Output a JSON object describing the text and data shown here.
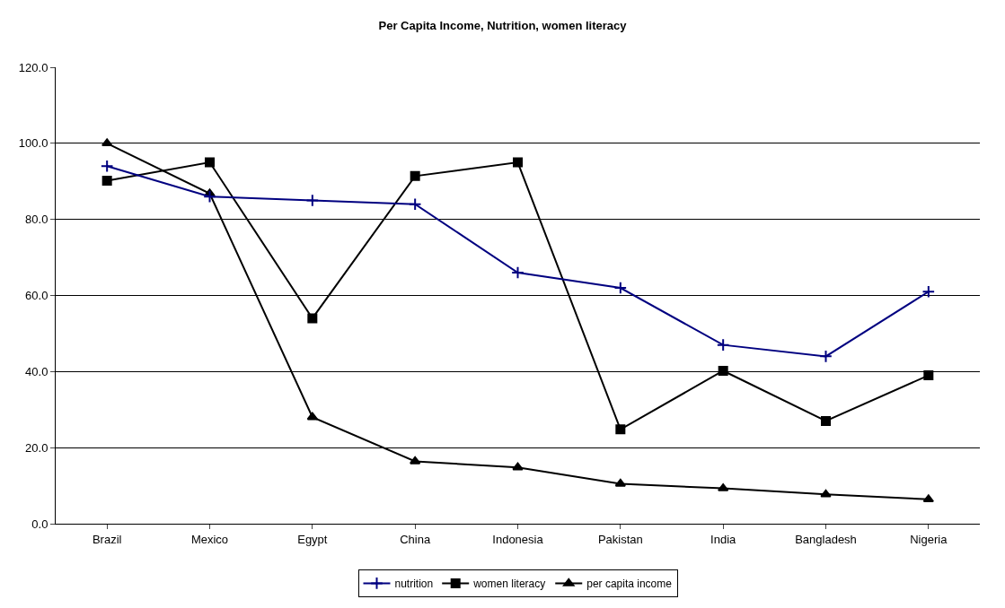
{
  "chart_data": {
    "type": "line",
    "title": "Per Capita Income, Nutrition, women literacy",
    "categories": [
      "Brazil",
      "Mexico",
      "Egypt",
      "China",
      "Indonesia",
      "Pakistan",
      "India",
      "Bangladesh",
      "Nigeria"
    ],
    "series": [
      {
        "name": "nutrition",
        "color": "#000080",
        "marker": "cross",
        "values": [
          94,
          86,
          85,
          84,
          66,
          62,
          47,
          44,
          61
        ]
      },
      {
        "name": "women literacy",
        "color": "#000000",
        "marker": "square",
        "values": [
          90.2,
          95,
          54,
          91.4,
          95,
          24.8,
          40.2,
          27,
          39
        ]
      },
      {
        "name": "per capita income",
        "color": "#000000",
        "marker": "triangle",
        "values": [
          100,
          86.8,
          28,
          16.4,
          14.8,
          10.5,
          9.3,
          7.7,
          6.4
        ]
      }
    ],
    "ylim": [
      0,
      120
    ],
    "yticks": [
      {
        "value": 0,
        "label": "0.0"
      },
      {
        "value": 20,
        "label": "20.0"
      },
      {
        "value": 40,
        "label": "40.0"
      },
      {
        "value": 60,
        "label": "60.0"
      },
      {
        "value": 80,
        "label": "80.0"
      },
      {
        "value": 100,
        "label": "100.0"
      },
      {
        "value": 120,
        "label": "120.0"
      }
    ],
    "grid": "y",
    "legend": "bottom"
  }
}
